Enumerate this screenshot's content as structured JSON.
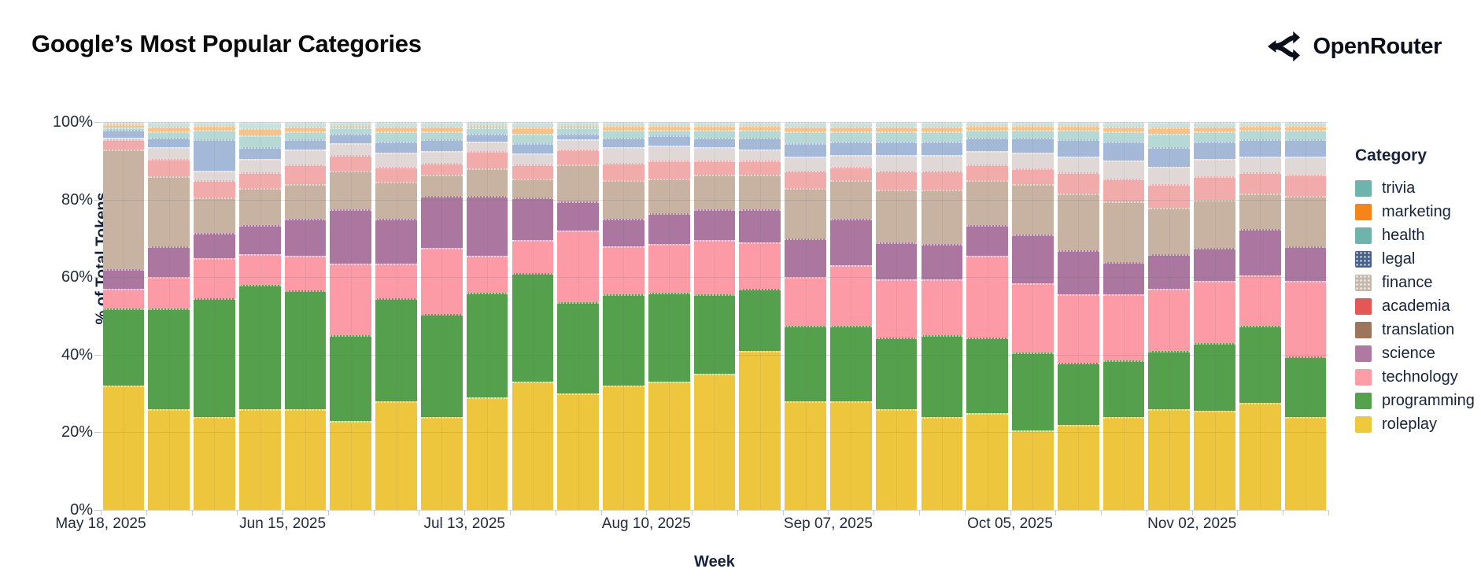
{
  "header": {
    "title": "Google’s Most Popular Categories",
    "brand": "OpenRouter"
  },
  "chart_data": {
    "type": "bar",
    "stacked": true,
    "title": "Google’s Most Popular Categories",
    "xlabel": "Week",
    "ylabel": "% of Total Tokens",
    "ylim": [
      0,
      100
    ],
    "grid": true,
    "legend_position": "right",
    "legend_title": "Category",
    "y_tick_labels": [
      "0%",
      "20%",
      "40%",
      "60%",
      "80%",
      "100%"
    ],
    "y_tick_values": [
      0,
      20,
      40,
      60,
      80,
      100
    ],
    "x": [
      "2025-05-18",
      "2025-05-25",
      "2025-06-01",
      "2025-06-08",
      "2025-06-15",
      "2025-06-22",
      "2025-06-29",
      "2025-07-06",
      "2025-07-13",
      "2025-07-20",
      "2025-07-27",
      "2025-08-03",
      "2025-08-10",
      "2025-08-17",
      "2025-08-24",
      "2025-08-31",
      "2025-09-07",
      "2025-09-14",
      "2025-09-21",
      "2025-09-28",
      "2025-10-05",
      "2025-10-12",
      "2025-10-19",
      "2025-10-26",
      "2025-11-02",
      "2025-11-09",
      "2025-11-16"
    ],
    "x_tick_labels": [
      "May 18, 2025",
      "Jun 15, 2025",
      "Jul 13, 2025",
      "Aug 10, 2025",
      "Sep 07, 2025",
      "Oct 05, 2025",
      "Nov 02, 2025"
    ],
    "x_tick_label_indices": [
      0,
      4,
      8,
      12,
      16,
      20,
      24
    ],
    "stack_order_bottom_to_top": [
      "roleplay",
      "programming",
      "technology",
      "science",
      "translation",
      "academia",
      "finance",
      "legal",
      "health",
      "marketing",
      "trivia"
    ],
    "series": [
      {
        "name": "trivia",
        "legend_color": "#6fb3ad",
        "bar_color": "#c7e3df",
        "textured": false,
        "values": [
          0.5,
          1.2,
          1,
          1.7,
          1.2,
          0.7,
          1.2,
          1.2,
          0.7,
          1.5,
          0.7,
          1,
          1,
          1,
          1,
          1.2,
          1.2,
          1.2,
          1.2,
          1,
          1,
          1,
          1.2,
          1.5,
          1.2,
          1,
          1
        ]
      },
      {
        "name": "marketing",
        "legend_color": "#f58518",
        "bar_color": "#f9c288",
        "textured": false,
        "values": [
          1,
          1.3,
          1,
          1.8,
          1.3,
          0.8,
          1.3,
          1.3,
          0.8,
          1.5,
          0.8,
          1,
          1,
          1,
          1,
          1.3,
          1.3,
          1.3,
          1.3,
          1,
          1,
          1,
          1.3,
          1.5,
          1.3,
          1,
          1
        ]
      },
      {
        "name": "health",
        "legend_color": "#6fb3ad",
        "bar_color": "#b6d9d5",
        "textured": false,
        "values": [
          0.5,
          1.5,
          2.5,
          3,
          2,
          1.5,
          2.5,
          2,
          1.5,
          2.5,
          1.5,
          2,
          1.5,
          2,
          2,
          3,
          2.5,
          2.5,
          2.5,
          2,
          2,
          2.5,
          2.5,
          3.5,
          2.5,
          2.5,
          2.5
        ]
      },
      {
        "name": "legal",
        "legend_color": "#47618c",
        "bar_color": "#a3b9d7",
        "textured": true,
        "values": [
          2,
          2.5,
          8,
          3,
          2.5,
          2.5,
          3,
          3,
          2,
          2.5,
          1.5,
          2.5,
          2.5,
          2.5,
          3,
          3.5,
          3.5,
          3.5,
          3.5,
          3.5,
          4,
          4.5,
          5,
          5,
          4.5,
          4.5,
          4.5
        ]
      },
      {
        "name": "finance",
        "legend_color": "#c5b9ac",
        "bar_color": "#dfd8d6",
        "textured": true,
        "values": [
          0.5,
          3,
          2.5,
          3.5,
          4,
          3,
          3.5,
          3,
          2.5,
          3,
          2.5,
          4,
          4,
          3.5,
          3,
          3.5,
          3,
          4,
          4,
          3.5,
          4,
          4,
          4.5,
          4.5,
          4.5,
          4,
          4.5
        ]
      },
      {
        "name": "academia",
        "legend_color": "#e45756",
        "bar_color": "#f0abaa",
        "textured": false,
        "values": [
          2.5,
          4.5,
          4.5,
          4,
          5,
          4,
          4,
          3,
          4.5,
          3.5,
          4,
          4.5,
          4.5,
          3.5,
          3.5,
          4.5,
          3.5,
          5,
          5,
          4,
          4,
          5.5,
          6,
          6,
          6,
          5.5,
          5.5
        ]
      },
      {
        "name": "translation",
        "legend_color": "#9d755d",
        "bar_color": "#c8b2a2",
        "textured": false,
        "values": [
          31,
          18,
          9,
          9.5,
          9,
          10,
          9.5,
          5.5,
          7,
          5,
          9.5,
          10,
          9,
          9,
          9,
          13,
          10,
          13.5,
          14,
          11.5,
          13,
          14.5,
          15.5,
          12,
          12.5,
          9,
          13
        ]
      },
      {
        "name": "science",
        "legend_color": "#af7aa1",
        "bar_color": "#ab77a1",
        "textured": false,
        "values": [
          5,
          8,
          6.5,
          7.5,
          9.5,
          14,
          11.5,
          13.5,
          15.5,
          11,
          7.5,
          7,
          8,
          8,
          8.5,
          10,
          12,
          9.5,
          9,
          8,
          12.5,
          11.5,
          8.5,
          9,
          8.5,
          12,
          9
        ]
      },
      {
        "name": "technology",
        "legend_color": "#ff9da6",
        "bar_color": "#fc9ba5",
        "textured": false,
        "values": [
          5,
          8,
          10.5,
          8,
          9,
          18.5,
          9,
          17,
          9.5,
          8.5,
          18.5,
          12.5,
          12.5,
          14,
          12,
          12.5,
          15.5,
          15,
          14.5,
          21,
          18,
          17.5,
          17,
          16,
          16,
          13,
          19.5
        ]
      },
      {
        "name": "programming",
        "legend_color": "#54a24b",
        "bar_color": "#54a04c",
        "textured": false,
        "values": [
          20,
          26,
          30.5,
          32,
          30.5,
          22,
          26.5,
          26.5,
          27,
          28,
          23.5,
          23.5,
          23,
          20.5,
          16,
          19.5,
          19.5,
          18.5,
          21,
          19.5,
          20,
          16,
          14.5,
          15,
          17.5,
          20,
          15.5
        ]
      },
      {
        "name": "roleplay",
        "legend_color": "#eeca3b",
        "bar_color": "#edc63d",
        "textured": false,
        "values": [
          32,
          26,
          24,
          26,
          26,
          23,
          28,
          24,
          29,
          33,
          30,
          32,
          33,
          35,
          41,
          28,
          28,
          26,
          24,
          25,
          20.5,
          22,
          24,
          26,
          25.5,
          27.5,
          24
        ]
      }
    ]
  }
}
